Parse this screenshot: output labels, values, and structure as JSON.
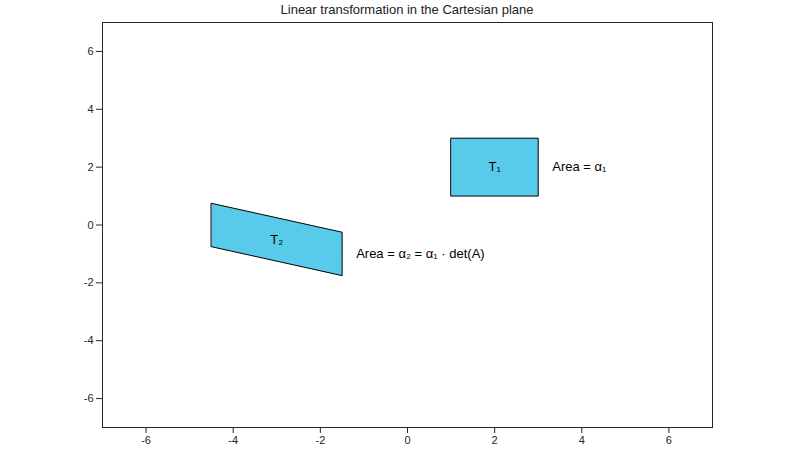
{
  "chart_data": {
    "type": "polygon",
    "title": "Linear transformation in the Cartesian plane",
    "xlim": [
      -7,
      7
    ],
    "xticks": [
      -6,
      -4,
      -2,
      0,
      2,
      4,
      6
    ],
    "ylim": [
      -7,
      7
    ],
    "yticks": [
      -6,
      -4,
      -2,
      0,
      2,
      4,
      6
    ],
    "grid": false,
    "shapes": [
      {
        "name": "T₁",
        "color": "#58cbeb",
        "annotation": "Area = α₁",
        "points": [
          [
            1,
            1
          ],
          [
            3,
            1
          ],
          [
            3,
            3
          ],
          [
            1,
            3
          ]
        ]
      },
      {
        "name": "T₂",
        "color": "#58cbeb",
        "annotation": "Area = α₂ = α₁ · det(A)",
        "points": [
          [
            -4.5,
            0.75
          ],
          [
            -1.5,
            -0.25
          ],
          [
            -1.5,
            -1.75
          ],
          [
            -4.5,
            -0.75
          ]
        ]
      }
    ]
  }
}
